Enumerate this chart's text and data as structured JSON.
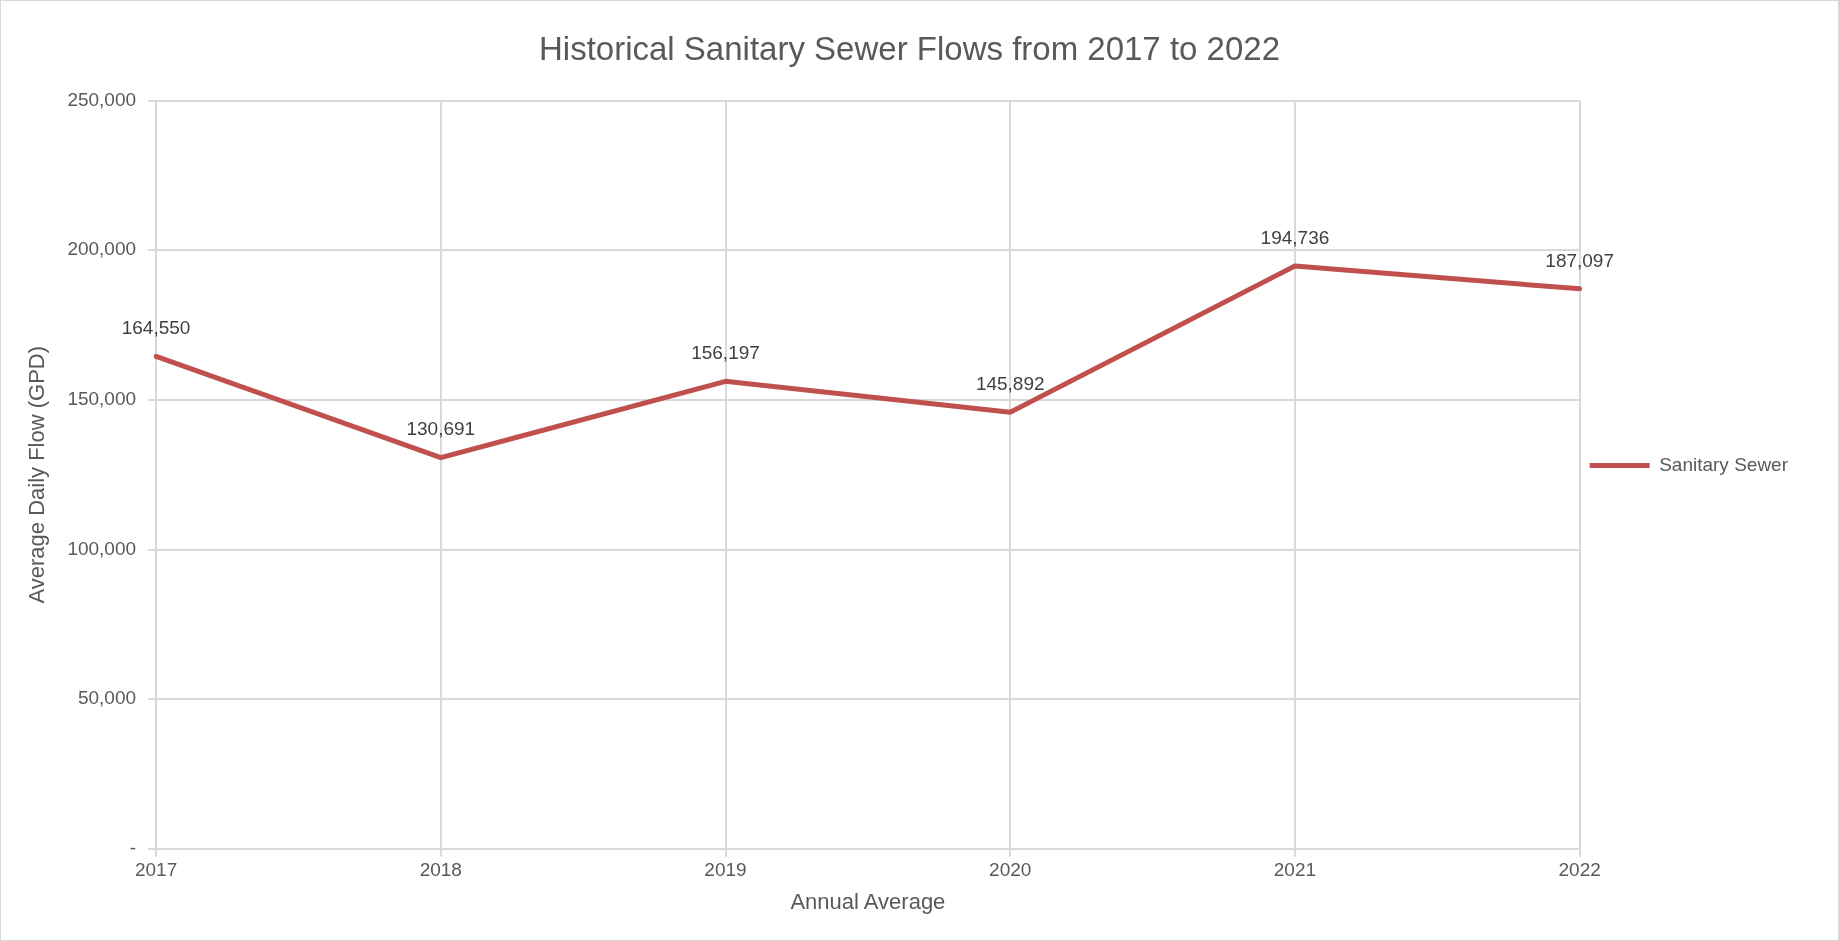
{
  "chart_data": {
    "type": "line",
    "title": "Historical Sanitary Sewer Flows from 2017 to 2022",
    "xlabel": "Annual Average",
    "ylabel": "Average Daily Flow (GPD)",
    "categories": [
      "2017",
      "2018",
      "2019",
      "2020",
      "2021",
      "2022"
    ],
    "series": [
      {
        "name": "Sanitary Sewer",
        "color": "#c0504d",
        "values": [
          164550,
          130691,
          156197,
          145892,
          194736,
          187097
        ],
        "value_labels": [
          "164,550",
          "130,691",
          "156,197",
          "145,892",
          "194,736",
          "187,097"
        ]
      }
    ],
    "ylim": [
      0,
      250000
    ],
    "yticks": [
      {
        "value": 0,
        "label": "-"
      },
      {
        "value": 50000,
        "label": "50,000"
      },
      {
        "value": 100000,
        "label": "100,000"
      },
      {
        "value": 150000,
        "label": "150,000"
      },
      {
        "value": 200000,
        "label": "200,000"
      },
      {
        "value": 250000,
        "label": "250,000"
      }
    ],
    "grid": true,
    "legend": "right",
    "marker": "none",
    "line_style": "solid"
  }
}
